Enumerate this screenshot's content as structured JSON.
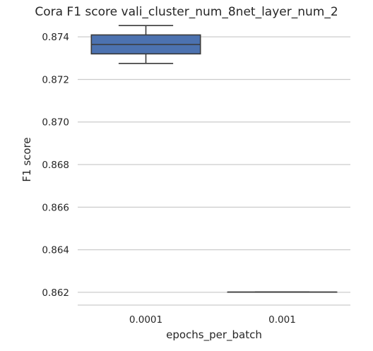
{
  "chart_data": {
    "type": "box",
    "title": "Cora F1 score vali_cluster_num_8net_layer_num_2",
    "xlabel": "epochs_per_batch",
    "ylabel": "F1 score",
    "categories": [
      "0.0001",
      "0.001"
    ],
    "boxes": [
      {
        "category": "0.0001",
        "whisker_low": 0.87275,
        "q1": 0.8732,
        "median": 0.87364,
        "q3": 0.87409,
        "whisker_high": 0.87453
      },
      {
        "category": "0.001",
        "whisker_low": 0.86201,
        "q1": 0.86201,
        "median": 0.86201,
        "q3": 0.86201,
        "whisker_high": 0.86201
      }
    ],
    "yticks": [
      "0.862",
      "0.864",
      "0.866",
      "0.868",
      "0.870",
      "0.872",
      "0.874"
    ],
    "ylim": [
      0.8614,
      0.875
    ],
    "grid": "horizontal",
    "colors": {
      "box_fill": "#4c72b0",
      "line": "#3a3a3a",
      "grid": "#cccccc",
      "text": "#262626"
    }
  }
}
